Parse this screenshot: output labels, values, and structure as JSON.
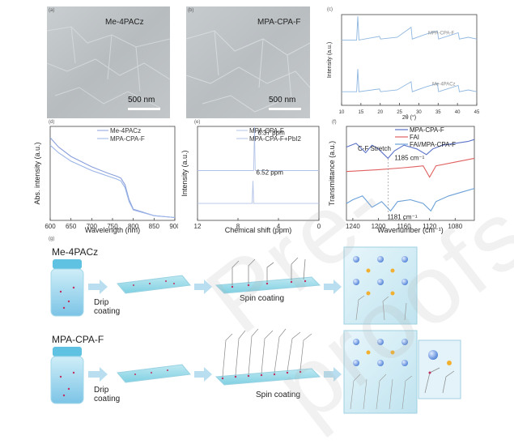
{
  "panels": {
    "a": {
      "tag": "(a)",
      "title": "Me-4PACz",
      "scale": "500 nm"
    },
    "b": {
      "tag": "(b)",
      "title": "MPA-CPA-F",
      "scale": "500 nm"
    },
    "c": {
      "tag": "(c)"
    },
    "d": {
      "tag": "(d)"
    },
    "e": {
      "tag": "(e)"
    },
    "f": {
      "tag": "(f)"
    },
    "g": {
      "tag": "(g)",
      "row1_label": "Me-4PACz",
      "row2_label": "MPA-CPA-F",
      "drip1": "Drip",
      "drip2": "coating",
      "spin": "Spin coating"
    }
  },
  "watermark": "Pre-proofs",
  "chart_data": [
    {
      "type": "line",
      "panel": "c",
      "title": "",
      "xlabel": "2θ (°)",
      "ylabel": "Intensity (a.u.)",
      "xlim": [
        10,
        45
      ],
      "xticks": [
        10,
        15,
        20,
        25,
        30,
        35,
        40,
        45
      ],
      "series": [
        {
          "name": "MPA-CPA-F",
          "x": [
            10,
            13.9,
            14.2,
            14.5,
            19.8,
            20.1,
            24.4,
            28.0,
            28.3,
            31.6,
            34.8,
            35.1,
            40.2,
            40.5,
            42.8,
            45
          ],
          "y": [
            0.72,
            0.72,
            0.98,
            0.72,
            0.76,
            0.73,
            0.75,
            0.86,
            0.73,
            0.78,
            0.82,
            0.73,
            0.8,
            0.73,
            0.75,
            0.73
          ]
        },
        {
          "name": "Me-4PACz",
          "x": [
            10,
            13.9,
            14.2,
            14.5,
            19.8,
            20.1,
            24.4,
            28.0,
            28.3,
            31.6,
            34.8,
            35.1,
            40.2,
            40.5,
            42.8,
            45
          ],
          "y": [
            0.15,
            0.15,
            0.4,
            0.15,
            0.18,
            0.15,
            0.17,
            0.26,
            0.15,
            0.2,
            0.24,
            0.15,
            0.22,
            0.15,
            0.17,
            0.15
          ]
        }
      ]
    },
    {
      "type": "line",
      "panel": "d",
      "title": "",
      "xlabel": "Wavelength (nm)",
      "ylabel": "Abs. intensity (a.u.)",
      "xlim": [
        600,
        900
      ],
      "xticks": [
        600,
        650,
        700,
        750,
        800,
        850,
        900
      ],
      "series": [
        {
          "name": "Me-4PACz",
          "x": [
            600,
            620,
            650,
            700,
            740,
            760,
            770,
            780,
            790,
            800,
            850,
            900
          ],
          "y": [
            0.88,
            0.78,
            0.68,
            0.57,
            0.5,
            0.47,
            0.45,
            0.38,
            0.22,
            0.12,
            0.05,
            0.03
          ]
        },
        {
          "name": "MPA-CPA-F",
          "x": [
            600,
            620,
            650,
            700,
            740,
            760,
            770,
            780,
            790,
            800,
            850,
            900
          ],
          "y": [
            0.8,
            0.72,
            0.63,
            0.53,
            0.47,
            0.44,
            0.42,
            0.35,
            0.2,
            0.11,
            0.05,
            0.03
          ]
        }
      ]
    },
    {
      "type": "line",
      "panel": "e",
      "title": "",
      "xlabel": "Chemical shift (ppm)",
      "ylabel": "Intensity (a.u.)",
      "xlim": [
        12,
        0
      ],
      "xticks": [
        12,
        8,
        4,
        0
      ],
      "annotations": [
        "6.37 ppm",
        "6.52 ppm"
      ],
      "series": [
        {
          "name": "MPA-CPA-F",
          "x": [
            12,
            6.6,
            6.52,
            6.45,
            0
          ],
          "y": [
            0.18,
            0.18,
            0.42,
            0.18,
            0.18
          ]
        },
        {
          "name": "MPA-CPA-F+PbI2",
          "x": [
            12,
            6.45,
            6.37,
            6.3,
            0
          ],
          "y": [
            0.53,
            0.53,
            1.0,
            0.53,
            0.53
          ]
        }
      ]
    },
    {
      "type": "line",
      "panel": "f",
      "title": "",
      "xlabel": "Wavenumber (cm⁻¹)",
      "ylabel": "Transmittance (a.u.)",
      "xlim": [
        1250,
        1050
      ],
      "xticks": [
        1240,
        1200,
        1160,
        1120,
        1080
      ],
      "annotations": [
        "C-F Stretch",
        "1185 cm⁻¹",
        "1181 cm⁻¹"
      ],
      "series": [
        {
          "name": "MPA-CPA-F",
          "x": [
            1250,
            1235,
            1220,
            1210,
            1200,
            1185,
            1175,
            1160,
            1140,
            1125,
            1115,
            1100,
            1080,
            1060,
            1050
          ],
          "y": [
            0.78,
            0.82,
            0.72,
            0.8,
            0.76,
            0.66,
            0.74,
            0.8,
            0.76,
            0.7,
            0.76,
            0.8,
            0.82,
            0.84,
            0.86
          ]
        },
        {
          "name": "FAI",
          "x": [
            1250,
            1200,
            1160,
            1130,
            1120,
            1110,
            1080,
            1050
          ],
          "y": [
            0.52,
            0.54,
            0.56,
            0.58,
            0.46,
            0.58,
            0.62,
            0.66
          ]
        },
        {
          "name": "FAI/MPA-CPA-F",
          "x": [
            1250,
            1240,
            1225,
            1210,
            1195,
            1181,
            1170,
            1150,
            1130,
            1118,
            1110,
            1090,
            1070,
            1050
          ],
          "y": [
            0.18,
            0.22,
            0.26,
            0.14,
            0.2,
            0.1,
            0.2,
            0.22,
            0.18,
            0.1,
            0.2,
            0.26,
            0.3,
            0.34
          ]
        }
      ]
    }
  ]
}
